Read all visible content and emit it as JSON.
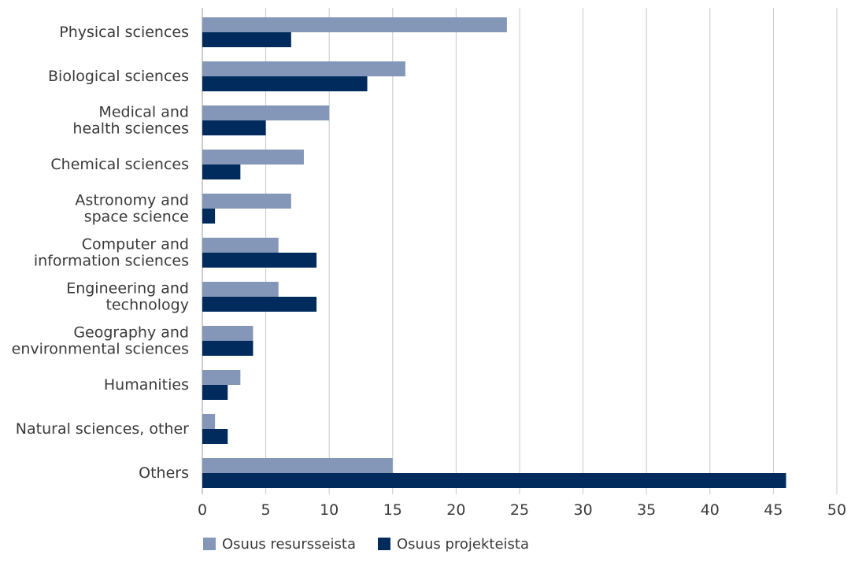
{
  "chart_data": {
    "type": "bar",
    "orientation": "horizontal",
    "categories": [
      [
        "Physical sciences"
      ],
      [
        "Biological sciences"
      ],
      [
        "Medical and",
        "health sciences"
      ],
      [
        "Chemical sciences"
      ],
      [
        "Astronomy and",
        "space science"
      ],
      [
        "Computer and",
        "information sciences"
      ],
      [
        "Engineering and",
        "technology"
      ],
      [
        "Geography and",
        "environmental sciences"
      ],
      [
        "Humanities"
      ],
      [
        "Natural sciences, other"
      ],
      [
        "Others"
      ]
    ],
    "series": [
      {
        "name": "Osuus resursseista",
        "color": "#8497b8",
        "values": [
          24,
          16,
          10,
          8,
          7,
          6,
          6,
          4,
          3,
          1,
          15
        ]
      },
      {
        "name": "Osuus projekteista",
        "color": "#002b5c",
        "values": [
          7,
          13,
          5,
          3,
          1,
          9,
          9,
          4,
          2,
          2,
          46
        ]
      }
    ],
    "xlim": [
      0,
      50
    ],
    "xticks": [
      "0",
      "5",
      "10",
      "15",
      "20",
      "25",
      "30",
      "35",
      "40",
      "45",
      "50"
    ],
    "grid": true,
    "legend_position": "bottom-left"
  }
}
